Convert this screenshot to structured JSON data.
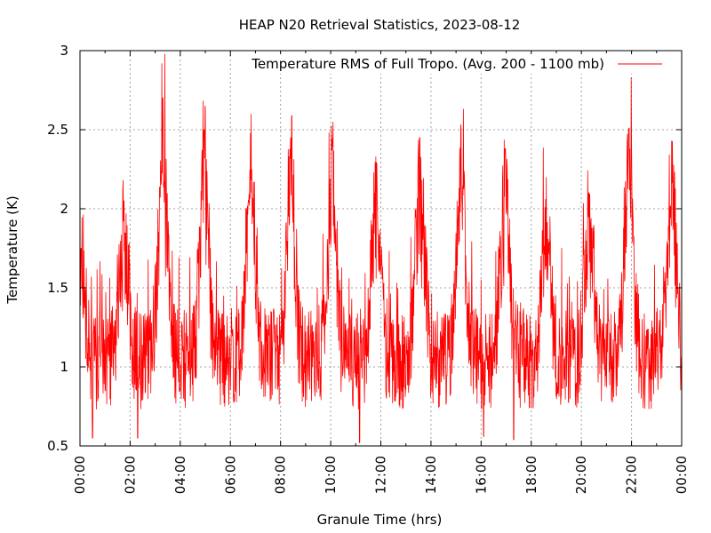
{
  "chart_data": {
    "type": "line",
    "title": "HEAP N20 Retrieval Statistics, 2023-08-12",
    "xlabel": "Granule Time (hrs)",
    "ylabel": "Temperature (K)",
    "xlim": [
      0,
      24
    ],
    "ylim": [
      0.5,
      3
    ],
    "grid": true,
    "legend_position": "top-right",
    "y_ticks": [
      {
        "value": 0.5,
        "label": "0.5"
      },
      {
        "value": 1.0,
        "label": "1"
      },
      {
        "value": 1.5,
        "label": "1.5"
      },
      {
        "value": 2.0,
        "label": "2"
      },
      {
        "value": 2.5,
        "label": "2.5"
      },
      {
        "value": 3.0,
        "label": "3"
      }
    ],
    "x_ticks": [
      {
        "value": 0,
        "label": "00:00"
      },
      {
        "value": 2,
        "label": "02:00"
      },
      {
        "value": 4,
        "label": "04:00"
      },
      {
        "value": 6,
        "label": "06:00"
      },
      {
        "value": 8,
        "label": "08:00"
      },
      {
        "value": 10,
        "label": "10:00"
      },
      {
        "value": 12,
        "label": "12:00"
      },
      {
        "value": 14,
        "label": "14:00"
      },
      {
        "value": 16,
        "label": "16:00"
      },
      {
        "value": 18,
        "label": "18:00"
      },
      {
        "value": 20,
        "label": "20:00"
      },
      {
        "value": 22,
        "label": "22:00"
      },
      {
        "value": 24,
        "label": "00:00"
      }
    ],
    "series": [
      {
        "name": "Temperature RMS of Full Tropo. (Avg. 200 - 1100 mb)",
        "color": "#ff0000",
        "baseline": 1.05,
        "noise_amplitude": 0.32,
        "orbit_peaks": [
          {
            "x": 0.05,
            "y": 1.75
          },
          {
            "x": 1.75,
            "y": 2.05
          },
          {
            "x": 3.3,
            "y": 2.7
          },
          {
            "x": 4.95,
            "y": 2.5
          },
          {
            "x": 6.8,
            "y": 2.48
          },
          {
            "x": 8.4,
            "y": 2.45
          },
          {
            "x": 10.05,
            "y": 2.37
          },
          {
            "x": 11.8,
            "y": 2.33
          },
          {
            "x": 13.55,
            "y": 2.45
          },
          {
            "x": 15.2,
            "y": 2.51
          },
          {
            "x": 16.95,
            "y": 2.38
          },
          {
            "x": 18.6,
            "y": 2.2
          },
          {
            "x": 20.3,
            "y": 2.1
          },
          {
            "x": 21.9,
            "y": 2.51
          },
          {
            "x": 23.6,
            "y": 2.43
          }
        ],
        "troughs": [
          {
            "x": 0.5,
            "y": 0.55
          },
          {
            "x": 2.3,
            "y": 0.55
          },
          {
            "x": 11.15,
            "y": 0.52
          },
          {
            "x": 16.1,
            "y": 0.56
          },
          {
            "x": 17.3,
            "y": 0.54
          }
        ]
      }
    ]
  }
}
